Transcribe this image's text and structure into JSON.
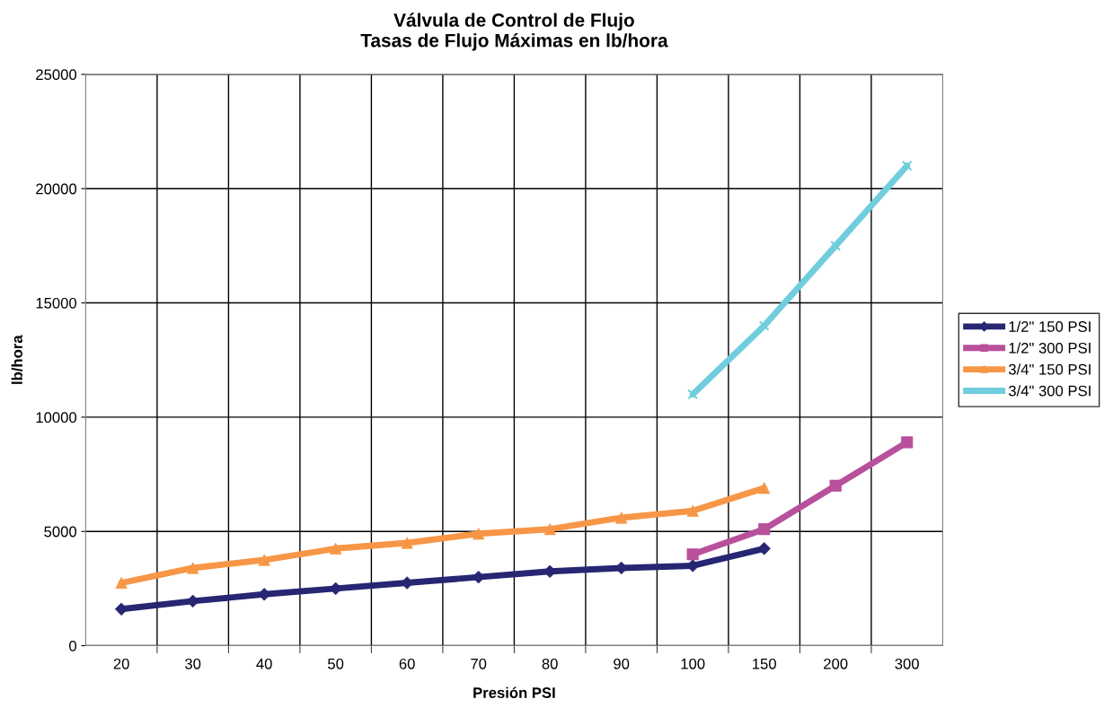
{
  "chart_data": {
    "type": "line",
    "title": "Válvula de Control de Flujo\nTasas de Flujo Máximas en lb/hora",
    "xlabel": "Presión PSI",
    "ylabel": "lb/hora",
    "categories": [
      "20",
      "30",
      "40",
      "50",
      "60",
      "70",
      "80",
      "90",
      "100",
      "150",
      "200",
      "300"
    ],
    "series": [
      {
        "name": "1/2\" 150 PSI",
        "color": "#262673",
        "marker": "diamond",
        "values": [
          1600,
          1950,
          2250,
          2500,
          2750,
          3000,
          3250,
          3400,
          3500,
          4250,
          null,
          null
        ]
      },
      {
        "name": "1/2\" 300 PSI",
        "color": "#b8509c",
        "marker": "square",
        "values": [
          null,
          null,
          null,
          null,
          null,
          null,
          null,
          null,
          4000,
          5100,
          7000,
          8900
        ]
      },
      {
        "name": "3/4\" 150 PSI",
        "color": "#f79646",
        "marker": "triangle",
        "values": [
          2750,
          3400,
          3750,
          4250,
          4500,
          4900,
          5100,
          5600,
          5900,
          6900,
          null,
          null
        ]
      },
      {
        "name": "3/4\" 300 PSI",
        "color": "#70cddd",
        "marker": "cross",
        "values": [
          null,
          null,
          null,
          null,
          null,
          null,
          null,
          null,
          11000,
          14000,
          17500,
          21000
        ]
      }
    ],
    "ylim": [
      0,
      25000
    ],
    "yticks": [
      0,
      5000,
      10000,
      15000,
      20000,
      25000
    ],
    "grid": true,
    "legend": "right",
    "line_style": "solid"
  }
}
